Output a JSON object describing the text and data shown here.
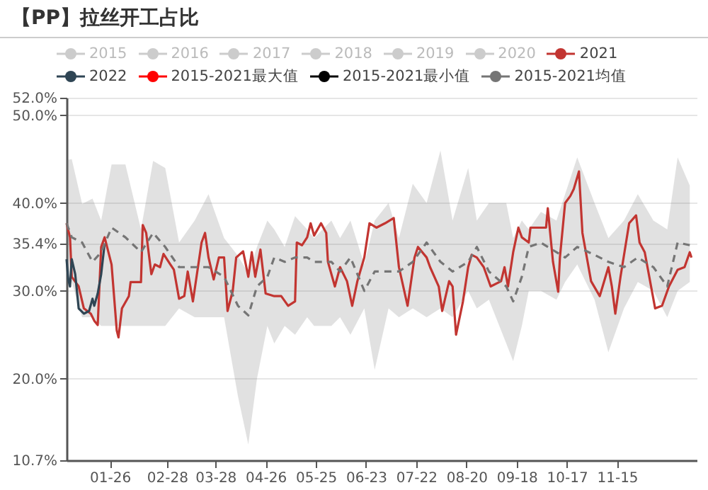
{
  "chart_data": {
    "type": "line",
    "title": "【PP】拉丝开工占比",
    "legend": "top",
    "grid": "y",
    "xlim": [
      "--01-01",
      "--12-31"
    ],
    "xticks": [
      {
        "value": "--01-26",
        "label": "01-26"
      },
      {
        "value": "--02-28",
        "label": "02-28"
      },
      {
        "value": "--03-28",
        "label": "03-28"
      },
      {
        "value": "--04-26",
        "label": "04-26"
      },
      {
        "value": "--05-25",
        "label": "05-25"
      },
      {
        "value": "--06-23",
        "label": "06-23"
      },
      {
        "value": "--07-22",
        "label": "07-22"
      },
      {
        "value": "--08-20",
        "label": "08-20"
      },
      {
        "value": "--09-18",
        "label": "09-18"
      },
      {
        "value": "--10-17",
        "label": "10-17"
      },
      {
        "value": "--11-15",
        "label": "11-15"
      }
    ],
    "ylim": [
      10.7,
      52
    ],
    "yticks": [
      {
        "value": 10.7,
        "label": "10.7%"
      },
      {
        "value": 20,
        "label": "20.0%"
      },
      {
        "value": 30,
        "label": "30.0%"
      },
      {
        "value": 35.4,
        "label": "35.4%"
      },
      {
        "value": 40,
        "label": "40.0%"
      },
      {
        "value": 50,
        "label": "50.0%"
      },
      {
        "value": 52,
        "label": "52.0%"
      }
    ],
    "series": [
      {
        "name": "2015",
        "color": "#cccccc"
      },
      {
        "name": "2016",
        "color": "#cccccc"
      },
      {
        "name": "2017",
        "color": "#cccccc"
      },
      {
        "name": "2018",
        "color": "#cccccc"
      },
      {
        "name": "2019",
        "color": "#cccccc"
      },
      {
        "name": "2020",
        "color": "#cccccc"
      },
      {
        "name": "2021",
        "color": "#c23531",
        "x": [
          "--01-01",
          "--01-03",
          "--01-04",
          "--01-08",
          "--01-11",
          "--01-15",
          "--01-17",
          "--01-19",
          "--01-21",
          "--01-23",
          "--01-27",
          "--01-30",
          "--01-31",
          "--02-02",
          "--02-06",
          "--02-07",
          "--02-13",
          "--02-14",
          "--02-16",
          "--02-19",
          "--02-21",
          "--02-24",
          "--02-26",
          "--03-02",
          "--03-04",
          "--03-07",
          "--03-10",
          "--03-12",
          "--03-15",
          "--03-20",
          "--03-22",
          "--03-24",
          "--03-27",
          "--03-30",
          "--04-02",
          "--04-04",
          "--04-07",
          "--04-09",
          "--04-13",
          "--04-16",
          "--04-18",
          "--04-20",
          "--04-23",
          "--04-26",
          "--05-01",
          "--05-05",
          "--05-09",
          "--05-13",
          "--05-14",
          "--05-17",
          "--05-20",
          "--05-22",
          "--05-24",
          "--05-28",
          "--05-31",
          "--06-01",
          "--06-05",
          "--06-08",
          "--06-12",
          "--06-15",
          "--06-18",
          "--06-22",
          "--06-25",
          "--06-29",
          "--07-04",
          "--07-09",
          "--07-12",
          "--07-17",
          "--07-21",
          "--07-23",
          "--07-28",
          "--07-30",
          "--08-04",
          "--08-06",
          "--08-10",
          "--08-12",
          "--08-14",
          "--08-18",
          "--08-21",
          "--08-23",
          "--08-26",
          "--08-30",
          "--09-03",
          "--09-09",
          "--09-11",
          "--09-13",
          "--09-16",
          "--09-19",
          "--09-21",
          "--09-25",
          "--09-26",
          "--10-05",
          "--10-06",
          "--10-09",
          "--10-12",
          "--10-13",
          "--10-16",
          "--10-19",
          "--10-21",
          "--10-24",
          "--10-26",
          "--10-29",
          "--10-31",
          "--11-05",
          "--11-10",
          "--11-12",
          "--11-14",
          "--11-17",
          "--11-22",
          "--11-26",
          "--11-28",
          "--12-01",
          "--12-07",
          "--12-11",
          "--12-15",
          "--12-20",
          "--12-24",
          "--12-27",
          "--12-28"
        ],
        "values": [
          37.7,
          36.1,
          31.6,
          30.5,
          28,
          27.4,
          26.6,
          26.1,
          35,
          36.1,
          33,
          25.5,
          24.7,
          28,
          29.4,
          31,
          31,
          37.5,
          36.6,
          31.9,
          33,
          32.7,
          34.2,
          33,
          32.4,
          29.1,
          29.4,
          32.2,
          28.8,
          35.5,
          36.6,
          33.8,
          31.3,
          33.8,
          33.8,
          27.7,
          30,
          33.8,
          34.5,
          31.6,
          34.4,
          31.6,
          34.7,
          29.7,
          29.4,
          29.4,
          28.3,
          28.8,
          35.5,
          35.2,
          36.1,
          37.7,
          36.3,
          37.7,
          36.6,
          33.3,
          30.5,
          32.7,
          31.1,
          28.3,
          31.1,
          33.8,
          37.7,
          37.2,
          37.7,
          38.3,
          32.7,
          28.3,
          33.8,
          35,
          33.8,
          32.7,
          30.5,
          27.7,
          31.1,
          30.5,
          25,
          28.8,
          32.7,
          34.1,
          33.8,
          32.7,
          30.5,
          31.1,
          32.7,
          30.5,
          34.4,
          37.2,
          36.1,
          35.5,
          37.2,
          37.2,
          39.4,
          33.3,
          29.9,
          33.8,
          40,
          40.8,
          41.6,
          43.6,
          36.6,
          33.3,
          31.1,
          29.4,
          32.7,
          30.5,
          27.4,
          31.6,
          37.7,
          38.6,
          35.5,
          34.4,
          28,
          28.3,
          30.5,
          32.4,
          32.7,
          34.4,
          33.8
        ]
      },
      {
        "name": "2022",
        "color": "#2f4554",
        "x": [
          "--01-01",
          "--01-02",
          "--01-03",
          "--01-04",
          "--01-06",
          "--01-08",
          "--01-11",
          "--01-14",
          "--01-16",
          "--01-17",
          "--01-19",
          "--01-21",
          "--01-23"
        ],
        "values": [
          33.6,
          31.3,
          30.5,
          33.6,
          31.9,
          28,
          27.4,
          27.7,
          29.1,
          28.3,
          29.7,
          31.9,
          35.4
        ]
      },
      {
        "name": "2015-2021最大值",
        "color": "#ff0000"
      },
      {
        "name": "2015-2021最小值",
        "color": "#000000"
      },
      {
        "name": "2015-2021均值",
        "color": "#757575",
        "line_style": "dashed",
        "x": [
          "--01-01",
          "--01-04",
          "--01-10",
          "--01-16",
          "--01-21",
          "--01-27",
          "--02-04",
          "--02-13",
          "--02-20",
          "--02-27",
          "--03-07",
          "--03-16",
          "--03-24",
          "--04-02",
          "--04-10",
          "--04-16",
          "--04-21",
          "--04-27",
          "--05-01",
          "--05-07",
          "--05-13",
          "--05-20",
          "--05-24",
          "--06-03",
          "--06-08",
          "--06-14",
          "--06-22",
          "--06-28",
          "--07-06",
          "--07-12",
          "--07-20",
          "--07-28",
          "--08-05",
          "--08-12",
          "--08-21",
          "--08-26",
          "--09-02",
          "--09-12",
          "--09-16",
          "--09-21",
          "--09-25",
          "--10-02",
          "--10-11",
          "--10-16",
          "--10-23",
          "--11-02",
          "--11-10",
          "--11-19",
          "--11-27",
          "--12-06",
          "--12-14",
          "--12-20",
          "--12-27"
        ],
        "values": [
          37.7,
          36.1,
          35.5,
          33.3,
          34.4,
          37.2,
          36.1,
          34.4,
          36.6,
          35,
          32.7,
          32.7,
          32.7,
          31.6,
          28.3,
          27.2,
          30.5,
          31.6,
          33.8,
          33.3,
          33.8,
          33.8,
          33.3,
          33.3,
          32.2,
          33.8,
          30,
          32.2,
          32.2,
          32.2,
          33.3,
          35.5,
          33.3,
          32.2,
          33.3,
          35,
          32.2,
          30.5,
          28.8,
          31.6,
          35,
          35.5,
          34.4,
          33.8,
          35,
          34.1,
          33.3,
          32.7,
          33.8,
          32.7,
          30.5,
          35.5,
          35.2
        ],
        "lower": [
          33,
          31,
          27,
          27,
          26,
          26,
          26,
          26,
          26,
          26,
          28,
          27,
          27,
          27,
          18,
          12.5,
          20,
          26,
          24,
          26,
          25,
          27,
          26,
          26,
          27,
          25,
          28,
          21,
          28,
          27,
          28,
          27,
          28,
          27,
          30,
          28,
          29,
          24,
          22,
          26,
          30,
          30,
          29,
          31,
          33,
          29,
          23,
          28,
          31,
          30,
          27,
          30,
          31
        ],
        "upper": [
          44.9,
          45,
          39.9,
          40.5,
          38,
          44.4,
          44.4,
          37,
          44.8,
          44,
          35.5,
          38,
          41,
          36,
          34,
          32,
          35,
          38,
          37,
          35,
          38.5,
          37,
          36,
          38,
          36,
          38,
          33,
          38,
          40,
          36,
          42.2,
          40,
          46,
          38,
          44,
          38,
          40,
          40,
          36,
          38,
          37,
          39,
          38,
          41,
          45.2,
          40,
          36,
          38,
          41,
          38,
          37,
          45.2,
          42
        ]
      }
    ]
  }
}
